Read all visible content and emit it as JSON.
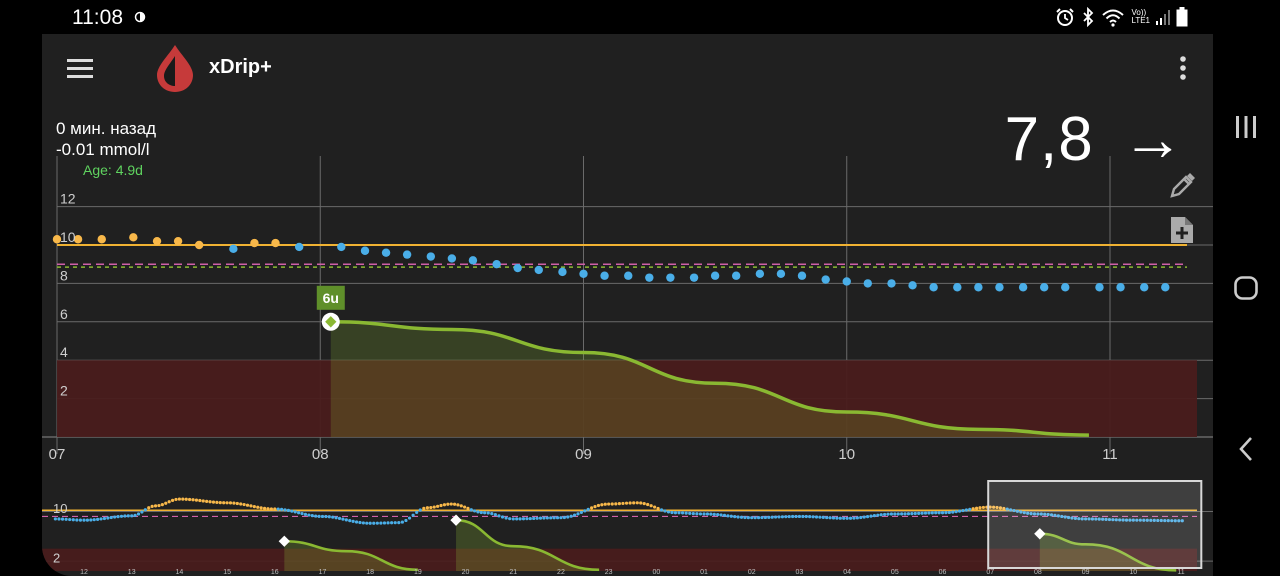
{
  "status_bar": {
    "time": "11:08",
    "icons": [
      "half-circle-icon",
      "alarm-icon",
      "bluetooth-icon",
      "wifi-icon",
      "volte-lte-icon",
      "signal-icon",
      "battery-icon"
    ],
    "network_label_top": "Vo))",
    "network_label_bottom": "LTE1"
  },
  "toolbar": {
    "title": "xDrip+",
    "menu_icon": "hamburger-icon",
    "logo_icon": "blood-drop-icon",
    "overflow_icon": "more-vertical-icon"
  },
  "reading": {
    "ago": "0 мин. назад",
    "delta": "-0.01 mmol/l",
    "age": "Age: 4.9d",
    "value": "7,8",
    "trend_arrow": "→"
  },
  "side_actions": [
    "pencil-icon",
    "note-add-icon"
  ],
  "colors": {
    "high_line": "#f0b232",
    "high_dots": "#f8b84a",
    "in_range_dots": "#4aaee8",
    "low_zone": "#4a1c1c",
    "insulin_curve": "#8ab832",
    "treatment_badge": "#5f8f2a",
    "target_dash_pink": "#d060a8",
    "target_dash_green": "#8ab832"
  },
  "chart_data": [
    {
      "type": "scatter",
      "title": "",
      "x_ticks": [
        "07",
        "08",
        "09",
        "10",
        "11"
      ],
      "y_ticks": [
        "2",
        "4",
        "6",
        "8",
        "10",
        "12"
      ],
      "ylim": [
        0,
        14
      ],
      "xlim_hours": [
        7.0,
        11.3
      ],
      "high_threshold": 10,
      "low_threshold": 4,
      "treatment": {
        "x": 8.04,
        "y": 6,
        "label": "6u"
      },
      "insulin_activity_curve": [
        {
          "x": 8.04,
          "y": 6.0
        },
        {
          "x": 8.5,
          "y": 5.6
        },
        {
          "x": 9.0,
          "y": 4.4
        },
        {
          "x": 9.5,
          "y": 2.8
        },
        {
          "x": 10.0,
          "y": 1.3
        },
        {
          "x": 10.5,
          "y": 0.4
        },
        {
          "x": 10.92,
          "y": 0.1
        }
      ],
      "bg_series": [
        {
          "x": 7.0,
          "y": 10.3
        },
        {
          "x": 7.08,
          "y": 10.3
        },
        {
          "x": 7.17,
          "y": 10.3
        },
        {
          "x": 7.29,
          "y": 10.4
        },
        {
          "x": 7.38,
          "y": 10.2
        },
        {
          "x": 7.46,
          "y": 10.2
        },
        {
          "x": 7.54,
          "y": 10.0
        },
        {
          "x": 7.67,
          "y": 9.8
        },
        {
          "x": 7.75,
          "y": 10.1
        },
        {
          "x": 7.83,
          "y": 10.1
        },
        {
          "x": 7.92,
          "y": 9.9
        },
        {
          "x": 8.08,
          "y": 9.9
        },
        {
          "x": 8.17,
          "y": 9.7
        },
        {
          "x": 8.25,
          "y": 9.6
        },
        {
          "x": 8.33,
          "y": 9.5
        },
        {
          "x": 8.42,
          "y": 9.4
        },
        {
          "x": 8.5,
          "y": 9.3
        },
        {
          "x": 8.58,
          "y": 9.2
        },
        {
          "x": 8.67,
          "y": 9.0
        },
        {
          "x": 8.75,
          "y": 8.8
        },
        {
          "x": 8.83,
          "y": 8.7
        },
        {
          "x": 8.92,
          "y": 8.6
        },
        {
          "x": 9.0,
          "y": 8.5
        },
        {
          "x": 9.08,
          "y": 8.4
        },
        {
          "x": 9.17,
          "y": 8.4
        },
        {
          "x": 9.25,
          "y": 8.3
        },
        {
          "x": 9.33,
          "y": 8.3
        },
        {
          "x": 9.42,
          "y": 8.3
        },
        {
          "x": 9.5,
          "y": 8.4
        },
        {
          "x": 9.58,
          "y": 8.4
        },
        {
          "x": 9.67,
          "y": 8.5
        },
        {
          "x": 9.75,
          "y": 8.5
        },
        {
          "x": 9.83,
          "y": 8.4
        },
        {
          "x": 9.92,
          "y": 8.2
        },
        {
          "x": 10.0,
          "y": 8.1
        },
        {
          "x": 10.08,
          "y": 8.0
        },
        {
          "x": 10.17,
          "y": 8.0
        },
        {
          "x": 10.25,
          "y": 7.9
        },
        {
          "x": 10.33,
          "y": 7.8
        },
        {
          "x": 10.42,
          "y": 7.8
        },
        {
          "x": 10.5,
          "y": 7.8
        },
        {
          "x": 10.58,
          "y": 7.8
        },
        {
          "x": 10.67,
          "y": 7.8
        },
        {
          "x": 10.75,
          "y": 7.8
        },
        {
          "x": 10.83,
          "y": 7.8
        },
        {
          "x": 10.96,
          "y": 7.8
        },
        {
          "x": 11.04,
          "y": 7.8
        },
        {
          "x": 11.13,
          "y": 7.8
        },
        {
          "x": 11.21,
          "y": 7.8
        }
      ]
    },
    {
      "type": "line",
      "title": "",
      "x_ticks": [
        "12",
        "13",
        "14",
        "15",
        "16",
        "17",
        "18",
        "19",
        "20",
        "21",
        "22",
        "23",
        "00",
        "01",
        "02",
        "03",
        "04",
        "05",
        "06",
        "07",
        "08",
        "09",
        "10",
        "11"
      ],
      "y_ticks": [
        "2",
        "10"
      ],
      "ylim": [
        0,
        14
      ],
      "bg_curve": [
        {
          "x": 11.4,
          "y": 8.4
        },
        {
          "x": 12.0,
          "y": 8.2
        },
        {
          "x": 13.0,
          "y": 8.9
        },
        {
          "x": 13.5,
          "y": 10.5
        },
        {
          "x": 14.0,
          "y": 11.6
        },
        {
          "x": 15.0,
          "y": 11.0
        },
        {
          "x": 16.0,
          "y": 10.0
        },
        {
          "x": 17.0,
          "y": 8.8
        },
        {
          "x": 18.0,
          "y": 7.7
        },
        {
          "x": 18.6,
          "y": 7.8
        },
        {
          "x": 19.2,
          "y": 10.2
        },
        {
          "x": 19.7,
          "y": 10.8
        },
        {
          "x": 20.4,
          "y": 9.4
        },
        {
          "x": 21.0,
          "y": 8.4
        },
        {
          "x": 22.0,
          "y": 8.6
        },
        {
          "x": 23.0,
          "y": 10.8
        },
        {
          "x": 23.6,
          "y": 11.0
        },
        {
          "x": 24.4,
          "y": 9.4
        },
        {
          "x": 25.0,
          "y": 9.2
        },
        {
          "x": 26.0,
          "y": 8.6
        },
        {
          "x": 27.0,
          "y": 8.8
        },
        {
          "x": 28.0,
          "y": 8.5
        },
        {
          "x": 29.0,
          "y": 9.2
        },
        {
          "x": 30.0,
          "y": 9.4
        },
        {
          "x": 31.0,
          "y": 10.3
        },
        {
          "x": 32.0,
          "y": 9.2
        },
        {
          "x": 33.0,
          "y": 8.4
        },
        {
          "x": 34.0,
          "y": 8.2
        },
        {
          "x": 35.1,
          "y": 8.1
        }
      ],
      "treatments": [
        {
          "x": 16.2,
          "y": 4.8
        },
        {
          "x": 19.8,
          "y": 8.2
        },
        {
          "x": 32.04,
          "y": 6.0
        }
      ],
      "insulin_curves": [
        [
          {
            "x": 16.2,
            "y": 4.8
          },
          {
            "x": 17.5,
            "y": 3.2
          },
          {
            "x": 19.0,
            "y": 0.2
          }
        ],
        [
          {
            "x": 19.8,
            "y": 8.2
          },
          {
            "x": 21.0,
            "y": 4.0
          },
          {
            "x": 22.8,
            "y": 0.2
          }
        ],
        [
          {
            "x": 32.04,
            "y": 6.0
          },
          {
            "x": 33.0,
            "y": 4.3
          },
          {
            "x": 34.9,
            "y": 0.1
          }
        ]
      ],
      "viewport": [
        31.0,
        35.3
      ]
    }
  ]
}
